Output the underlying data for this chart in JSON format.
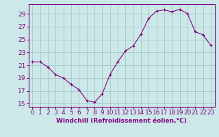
{
  "x": [
    0,
    1,
    2,
    3,
    4,
    5,
    6,
    7,
    8,
    9,
    10,
    11,
    12,
    13,
    14,
    15,
    16,
    17,
    18,
    19,
    20,
    21,
    22,
    23
  ],
  "y": [
    21.5,
    21.5,
    20.7,
    19.5,
    19.0,
    18.0,
    17.2,
    15.5,
    15.2,
    16.5,
    19.5,
    21.5,
    23.2,
    24.0,
    25.8,
    28.3,
    29.4,
    29.6,
    29.3,
    29.7,
    29.0,
    26.2,
    25.7,
    24.1
  ],
  "line_color": "#800080",
  "bg_color": "#cce8e8",
  "grid_color": "#aacccc",
  "xlabel": "Windchill (Refroidissement éolien,°C)",
  "xlabel_color": "#800080",
  "tick_color": "#800080",
  "ylim": [
    14.5,
    30.5
  ],
  "yticks": [
    15,
    17,
    19,
    21,
    23,
    25,
    27,
    29
  ],
  "xlim": [
    -0.5,
    23.5
  ],
  "tick_fontsize": 6.5,
  "xlabel_fontsize": 6.5
}
